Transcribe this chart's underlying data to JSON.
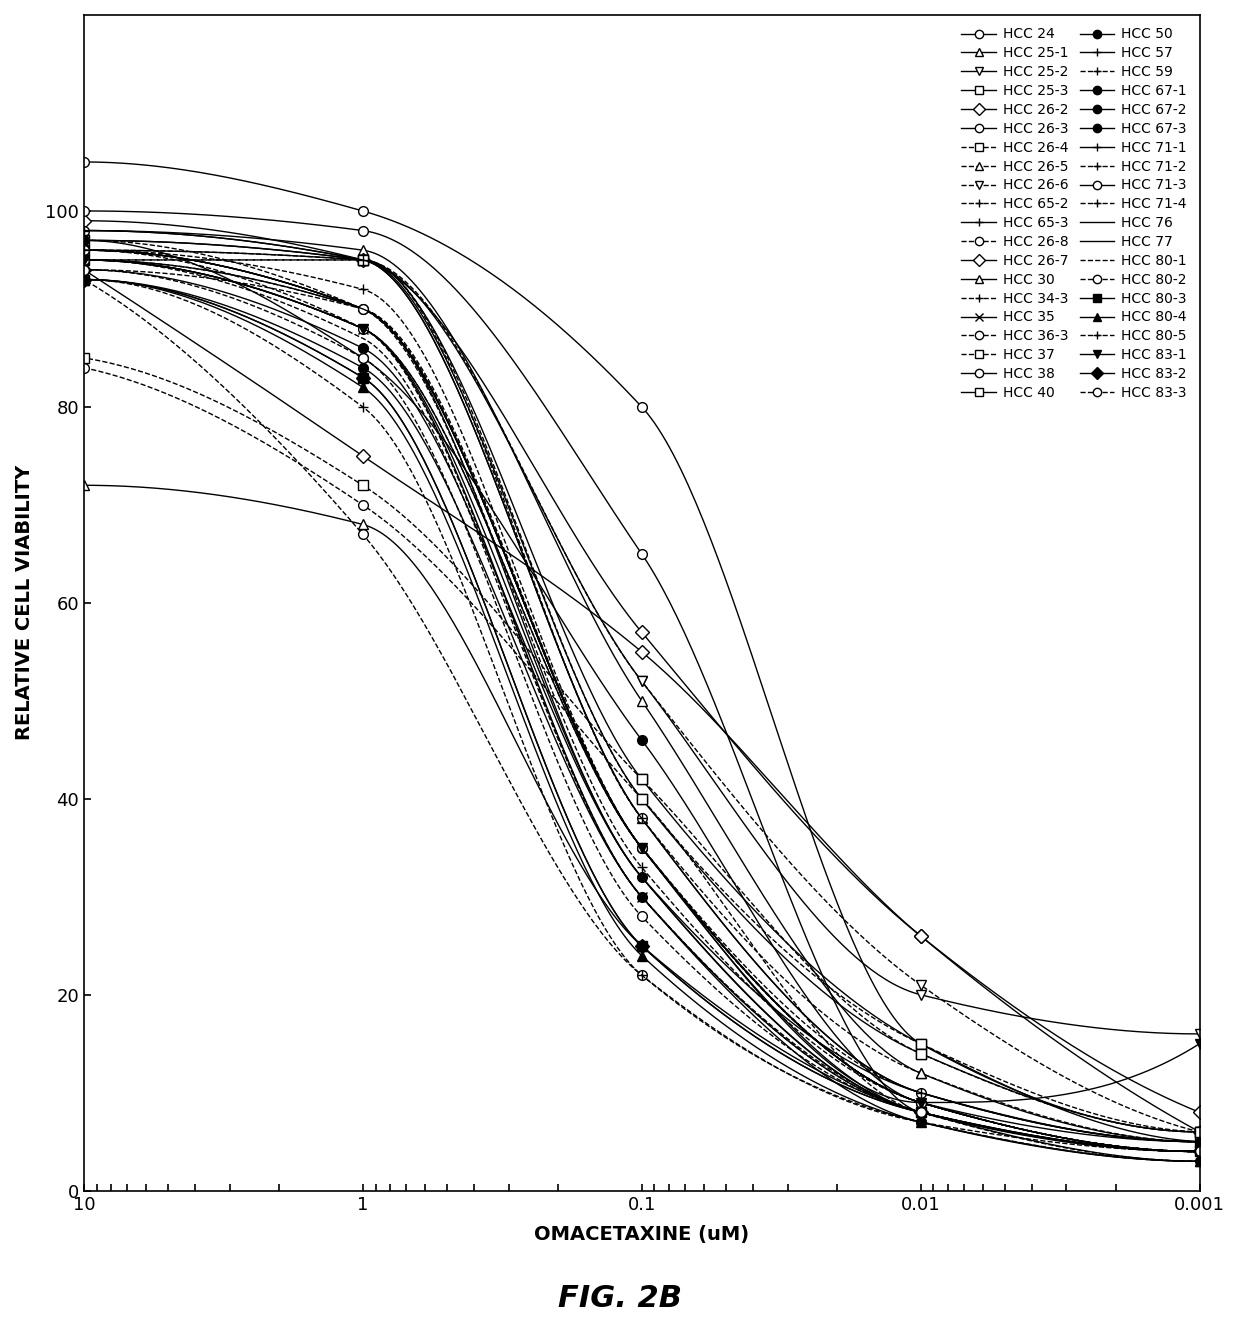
{
  "title": "FIG. 2B",
  "xlabel": "OMACETAXINE (uM)",
  "ylabel": "RELATIVE CELL VIABILITY",
  "x_values": [
    10,
    1,
    0.1,
    0.01,
    0.001
  ],
  "series": [
    {
      "name": "HCC 24",
      "marker": "o",
      "linestyle": "-",
      "fillstyle": "none",
      "y": [
        105,
        100,
        80,
        15,
        6
      ]
    },
    {
      "name": "HCC 25-1",
      "marker": "^",
      "linestyle": "-",
      "fillstyle": "none",
      "y": [
        98,
        96,
        50,
        12,
        5
      ]
    },
    {
      "name": "HCC 25-2",
      "marker": "v",
      "linestyle": "-",
      "fillstyle": "none",
      "y": [
        97,
        95,
        52,
        20,
        16
      ]
    },
    {
      "name": "HCC 25-3",
      "marker": "s",
      "linestyle": "-",
      "fillstyle": "none",
      "y": [
        96,
        95,
        42,
        15,
        5
      ]
    },
    {
      "name": "HCC 26-2",
      "marker": "D",
      "linestyle": "-",
      "fillstyle": "none",
      "y": [
        99,
        95,
        57,
        26,
        8
      ]
    },
    {
      "name": "HCC 26-3",
      "marker": "o",
      "linestyle": "-",
      "fillstyle": "none",
      "y": [
        100,
        98,
        65,
        8,
        4
      ]
    },
    {
      "name": "HCC 26-4",
      "marker": "s",
      "linestyle": "--",
      "fillstyle": "none",
      "y": [
        95,
        95,
        40,
        15,
        6
      ]
    },
    {
      "name": "HCC 26-5",
      "marker": "^",
      "linestyle": "--",
      "fillstyle": "none",
      "y": [
        95,
        95,
        38,
        12,
        5
      ]
    },
    {
      "name": "HCC 26-6",
      "marker": "v",
      "linestyle": "--",
      "fillstyle": "none",
      "y": [
        96,
        95,
        52,
        21,
        6
      ]
    },
    {
      "name": "HCC 65-2",
      "marker": "+",
      "linestyle": "--",
      "fillstyle": "none",
      "y": [
        95,
        90,
        35,
        10,
        5
      ]
    },
    {
      "name": "HCC 65-3",
      "marker": "+",
      "linestyle": "-",
      "fillstyle": "none",
      "y": [
        95,
        90,
        32,
        10,
        5
      ]
    },
    {
      "name": "HCC 26-8",
      "marker": "o",
      "linestyle": "--",
      "fillstyle": "none",
      "y": [
        93,
        67,
        22,
        7,
        4
      ]
    },
    {
      "name": "HCC 26-7",
      "marker": "D",
      "linestyle": "-",
      "fillstyle": "none",
      "y": [
        94,
        75,
        55,
        26,
        6
      ]
    },
    {
      "name": "HCC 30",
      "marker": "^",
      "linestyle": "-",
      "fillstyle": "none",
      "y": [
        72,
        68,
        25,
        8,
        3
      ]
    },
    {
      "name": "HCC 34-3",
      "marker": "+",
      "linestyle": "--",
      "fillstyle": "none",
      "y": [
        94,
        90,
        35,
        9,
        4
      ]
    },
    {
      "name": "HCC 35",
      "marker": "x",
      "linestyle": "-",
      "fillstyle": "none",
      "y": [
        95,
        88,
        30,
        8,
        4
      ]
    },
    {
      "name": "HCC 36-3",
      "marker": "o",
      "linestyle": "--",
      "fillstyle": "none",
      "y": [
        84,
        70,
        40,
        8,
        4
      ]
    },
    {
      "name": "HCC 37",
      "marker": "s",
      "linestyle": "--",
      "fillstyle": "none",
      "y": [
        85,
        72,
        42,
        14,
        6
      ]
    },
    {
      "name": "HCC 38",
      "marker": "o",
      "linestyle": "-",
      "fillstyle": "none",
      "y": [
        98,
        95,
        38,
        10,
        5
      ]
    },
    {
      "name": "HCC 40",
      "marker": "s",
      "linestyle": "-",
      "fillstyle": "none",
      "y": [
        97,
        95,
        40,
        14,
        6
      ]
    },
    {
      "name": "HCC 50",
      "marker": "o",
      "linestyle": "-",
      "fillstyle": "full",
      "y": [
        97,
        85,
        46,
        9,
        5
      ]
    },
    {
      "name": "HCC 57",
      "marker": "+",
      "linestyle": "-",
      "fillstyle": "none",
      "y": [
        98,
        95,
        38,
        10,
        5
      ]
    },
    {
      "name": "HCC 59",
      "marker": "+",
      "linestyle": "--",
      "fillstyle": "none",
      "y": [
        96,
        92,
        35,
        9,
        4
      ]
    },
    {
      "name": "HCC 67-1",
      "marker": "o",
      "linestyle": "-",
      "fillstyle": "full",
      "y": [
        96,
        90,
        35,
        8,
        4
      ]
    },
    {
      "name": "HCC 67-2",
      "marker": "o",
      "linestyle": "-",
      "fillstyle": "full",
      "y": [
        94,
        86,
        32,
        8,
        4
      ]
    },
    {
      "name": "HCC 67-3",
      "marker": "o",
      "linestyle": "-",
      "fillstyle": "full",
      "y": [
        93,
        84,
        30,
        7,
        3
      ]
    },
    {
      "name": "HCC 71-1",
      "marker": "+",
      "linestyle": "-",
      "fillstyle": "none",
      "y": [
        96,
        90,
        35,
        9,
        4
      ]
    },
    {
      "name": "HCC 71-2",
      "marker": "+",
      "linestyle": "--",
      "fillstyle": "none",
      "y": [
        97,
        90,
        33,
        9,
        4
      ]
    },
    {
      "name": "HCC 71-3",
      "marker": "o",
      "linestyle": "-",
      "fillstyle": "none",
      "y": [
        96,
        90,
        35,
        9,
        4
      ]
    },
    {
      "name": "HCC 71-4",
      "marker": "+",
      "linestyle": "--",
      "fillstyle": "none",
      "y": [
        96,
        88,
        30,
        8,
        3
      ]
    },
    {
      "name": "HCC 76",
      "marker": "",
      "linestyle": "-",
      "fillstyle": "none",
      "y": [
        96,
        90,
        35,
        9,
        4
      ]
    },
    {
      "name": "HCC 77",
      "marker": "",
      "linestyle": "-",
      "fillstyle": "none",
      "y": [
        95,
        88,
        32,
        8,
        4
      ]
    },
    {
      "name": "HCC 80-1",
      "marker": "",
      "linestyle": "--",
      "fillstyle": "none",
      "y": [
        95,
        87,
        30,
        8,
        4
      ]
    },
    {
      "name": "HCC 80-2",
      "marker": "o",
      "linestyle": "--",
      "fillstyle": "none",
      "y": [
        95,
        88,
        35,
        9,
        4
      ]
    },
    {
      "name": "HCC 80-3",
      "marker": "s",
      "linestyle": "-",
      "fillstyle": "full",
      "y": [
        93,
        83,
        25,
        8,
        4
      ]
    },
    {
      "name": "HCC 80-4",
      "marker": "^",
      "linestyle": "-",
      "fillstyle": "full",
      "y": [
        93,
        82,
        24,
        7,
        3
      ]
    },
    {
      "name": "HCC 80-5",
      "marker": "+",
      "linestyle": "--",
      "fillstyle": "none",
      "y": [
        93,
        80,
        22,
        7,
        3
      ]
    },
    {
      "name": "HCC 83-1",
      "marker": "v",
      "linestyle": "-",
      "fillstyle": "full",
      "y": [
        95,
        88,
        35,
        9,
        15
      ]
    },
    {
      "name": "HCC 83-2",
      "marker": "D",
      "linestyle": "-",
      "fillstyle": "full",
      "y": [
        93,
        83,
        25,
        8,
        4
      ]
    },
    {
      "name": "HCC 83-3",
      "marker": "o",
      "linestyle": "--",
      "fillstyle": "none",
      "y": [
        94,
        85,
        28,
        8,
        4
      ]
    }
  ],
  "background_color": "#ffffff",
  "line_color": "#000000",
  "ylim": [
    0,
    120
  ],
  "yticks": [
    0,
    20,
    40,
    60,
    80,
    100
  ],
  "figure_label": "FIG. 2B"
}
